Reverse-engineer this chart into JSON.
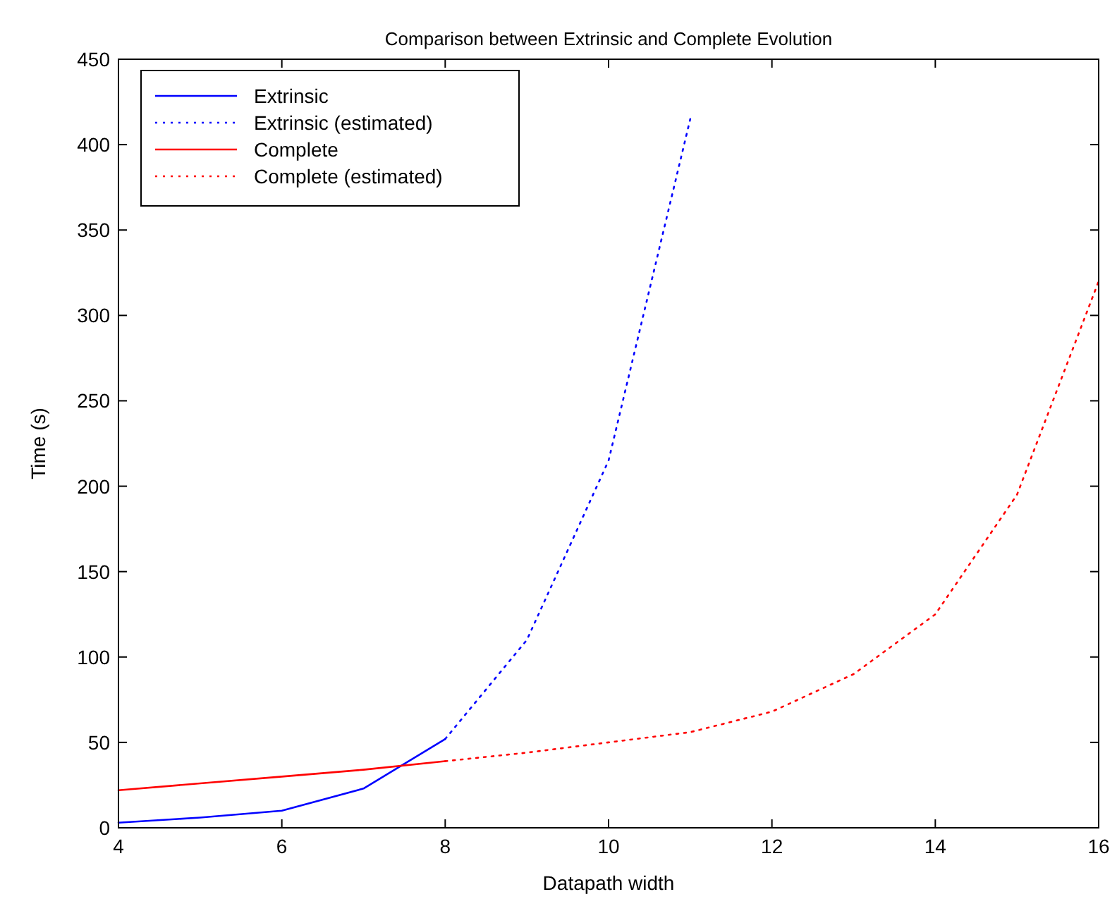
{
  "chart_data": {
    "type": "line",
    "title": "Comparison between Extrinsic and Complete Evolution",
    "xlabel": "Datapath width",
    "ylabel": "Time (s)",
    "xlim": [
      4,
      16
    ],
    "xticks": [
      4,
      6,
      8,
      10,
      12,
      14,
      16
    ],
    "ylim": [
      0,
      450
    ],
    "yticks": [
      0,
      50,
      100,
      150,
      200,
      250,
      300,
      350,
      400,
      450
    ],
    "grid": false,
    "legend": "top left",
    "marker": "none",
    "series": [
      {
        "name": "Extrinsic",
        "color": "#0000ff",
        "line_style": "solid",
        "x": [
          4,
          5,
          6,
          7,
          8
        ],
        "values": [
          3,
          6,
          10,
          23,
          52
        ]
      },
      {
        "name": "Extrinsic (estimated)",
        "color": "#0000ff",
        "line_style": "dotted",
        "x": [
          8,
          9,
          10,
          11
        ],
        "values": [
          52,
          110,
          215,
          415
        ]
      },
      {
        "name": "Complete",
        "color": "#ff0000",
        "line_style": "solid",
        "x": [
          4,
          5,
          6,
          7,
          8
        ],
        "values": [
          22,
          26,
          30,
          34,
          39
        ]
      },
      {
        "name": "Complete (estimated)",
        "color": "#ff0000",
        "line_style": "dotted",
        "x": [
          8,
          9,
          10,
          11,
          12,
          13,
          14,
          15,
          16
        ],
        "values": [
          39,
          44,
          50,
          56,
          68,
          90,
          125,
          195,
          320
        ]
      }
    ]
  }
}
